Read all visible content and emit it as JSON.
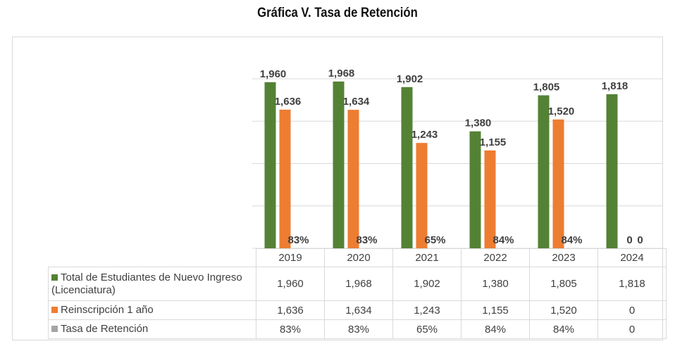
{
  "title": "Gráfica V. Tasa de Retención",
  "chart_data": {
    "type": "bar",
    "title": "Gráfica V. Tasa de Retención",
    "categories": [
      "2019",
      "2020",
      "2021",
      "2022",
      "2023",
      "2024"
    ],
    "ylim": [
      0,
      2000
    ],
    "grid": true,
    "legend": "data-table",
    "series": [
      {
        "name": "Total de Estudiantes de Nuevo Ingreso (Licenciatura)",
        "color": "#548235",
        "values": [
          1960,
          1968,
          1902,
          1380,
          1805,
          1818
        ],
        "labels": [
          "1,960",
          "1,968",
          "1,902",
          "1,380",
          "1,805",
          "1,818"
        ]
      },
      {
        "name": "Reinscripción 1 año",
        "color": "#ed7d31",
        "values": [
          1636,
          1634,
          1243,
          1155,
          1520,
          0
        ],
        "labels": [
          "1,636",
          "1,634",
          "1,243",
          "1,155",
          "1,520",
          "0"
        ]
      },
      {
        "name": "Tasa de Retención",
        "color": "#a5a5a5",
        "values": [
          0.83,
          0.83,
          0.65,
          0.84,
          0.84,
          0
        ],
        "labels": [
          "83%",
          "83%",
          "65%",
          "84%",
          "84%",
          "0"
        ]
      }
    ]
  }
}
